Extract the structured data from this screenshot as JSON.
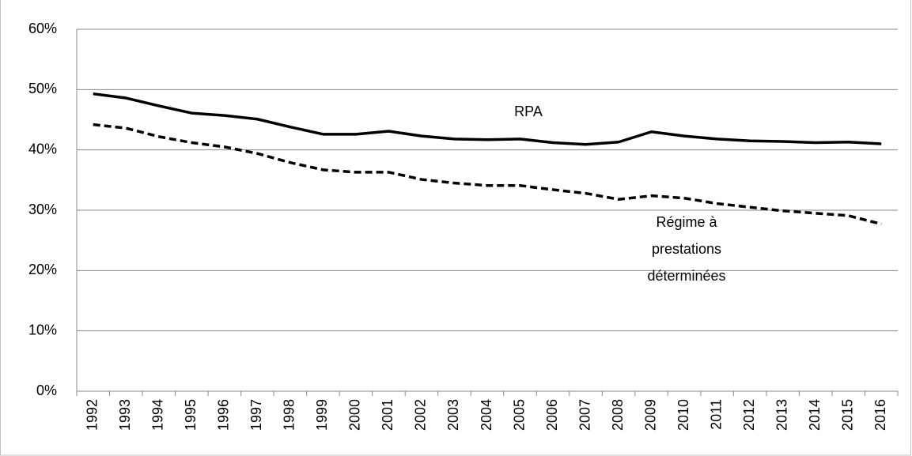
{
  "chart_data": {
    "type": "line",
    "categories": [
      "1992",
      "1993",
      "1994",
      "1995",
      "1996",
      "1997",
      "1998",
      "1999",
      "2000",
      "2001",
      "2002",
      "2003",
      "2004",
      "2005",
      "2006",
      "2007",
      "2008",
      "2009",
      "2010",
      "2011",
      "2012",
      "2013",
      "2014",
      "2015",
      "2016"
    ],
    "series": [
      {
        "color": "#000000",
        "line_style": "solid",
        "values": [
          49.3,
          48.6,
          47.3,
          46.1,
          45.7,
          45.1,
          43.8,
          42.6,
          42.6,
          43.1,
          42.3,
          41.8,
          41.7,
          41.8,
          41.2,
          40.9,
          41.3,
          43.0,
          42.3,
          41.8,
          41.5,
          41.4,
          41.2,
          41.3,
          41.0
        ]
      },
      {
        "color": "#000000",
        "line_style": "dashed",
        "values": [
          44.2,
          43.6,
          42.2,
          41.2,
          40.5,
          39.4,
          37.9,
          36.7,
          36.3,
          36.3,
          35.1,
          34.5,
          34.1,
          34.1,
          33.4,
          32.8,
          31.8,
          32.4,
          32.0,
          31.1,
          30.5,
          29.9,
          29.5,
          29.1,
          27.7
        ]
      }
    ],
    "annotations": [
      {
        "lines": [
          "RPA"
        ]
      },
      {
        "lines": [
          "Régime à",
          "prestations",
          "déterminées"
        ]
      }
    ],
    "ylim": [
      0,
      60
    ],
    "yticks": [
      {
        "value": 0,
        "label": "0%"
      },
      {
        "value": 10,
        "label": "10%"
      },
      {
        "value": 20,
        "label": "20%"
      },
      {
        "value": 30,
        "label": "30%"
      },
      {
        "value": 40,
        "label": "40%"
      },
      {
        "value": 50,
        "label": "50%"
      },
      {
        "value": 60,
        "label": "60%"
      }
    ],
    "grid": true
  }
}
